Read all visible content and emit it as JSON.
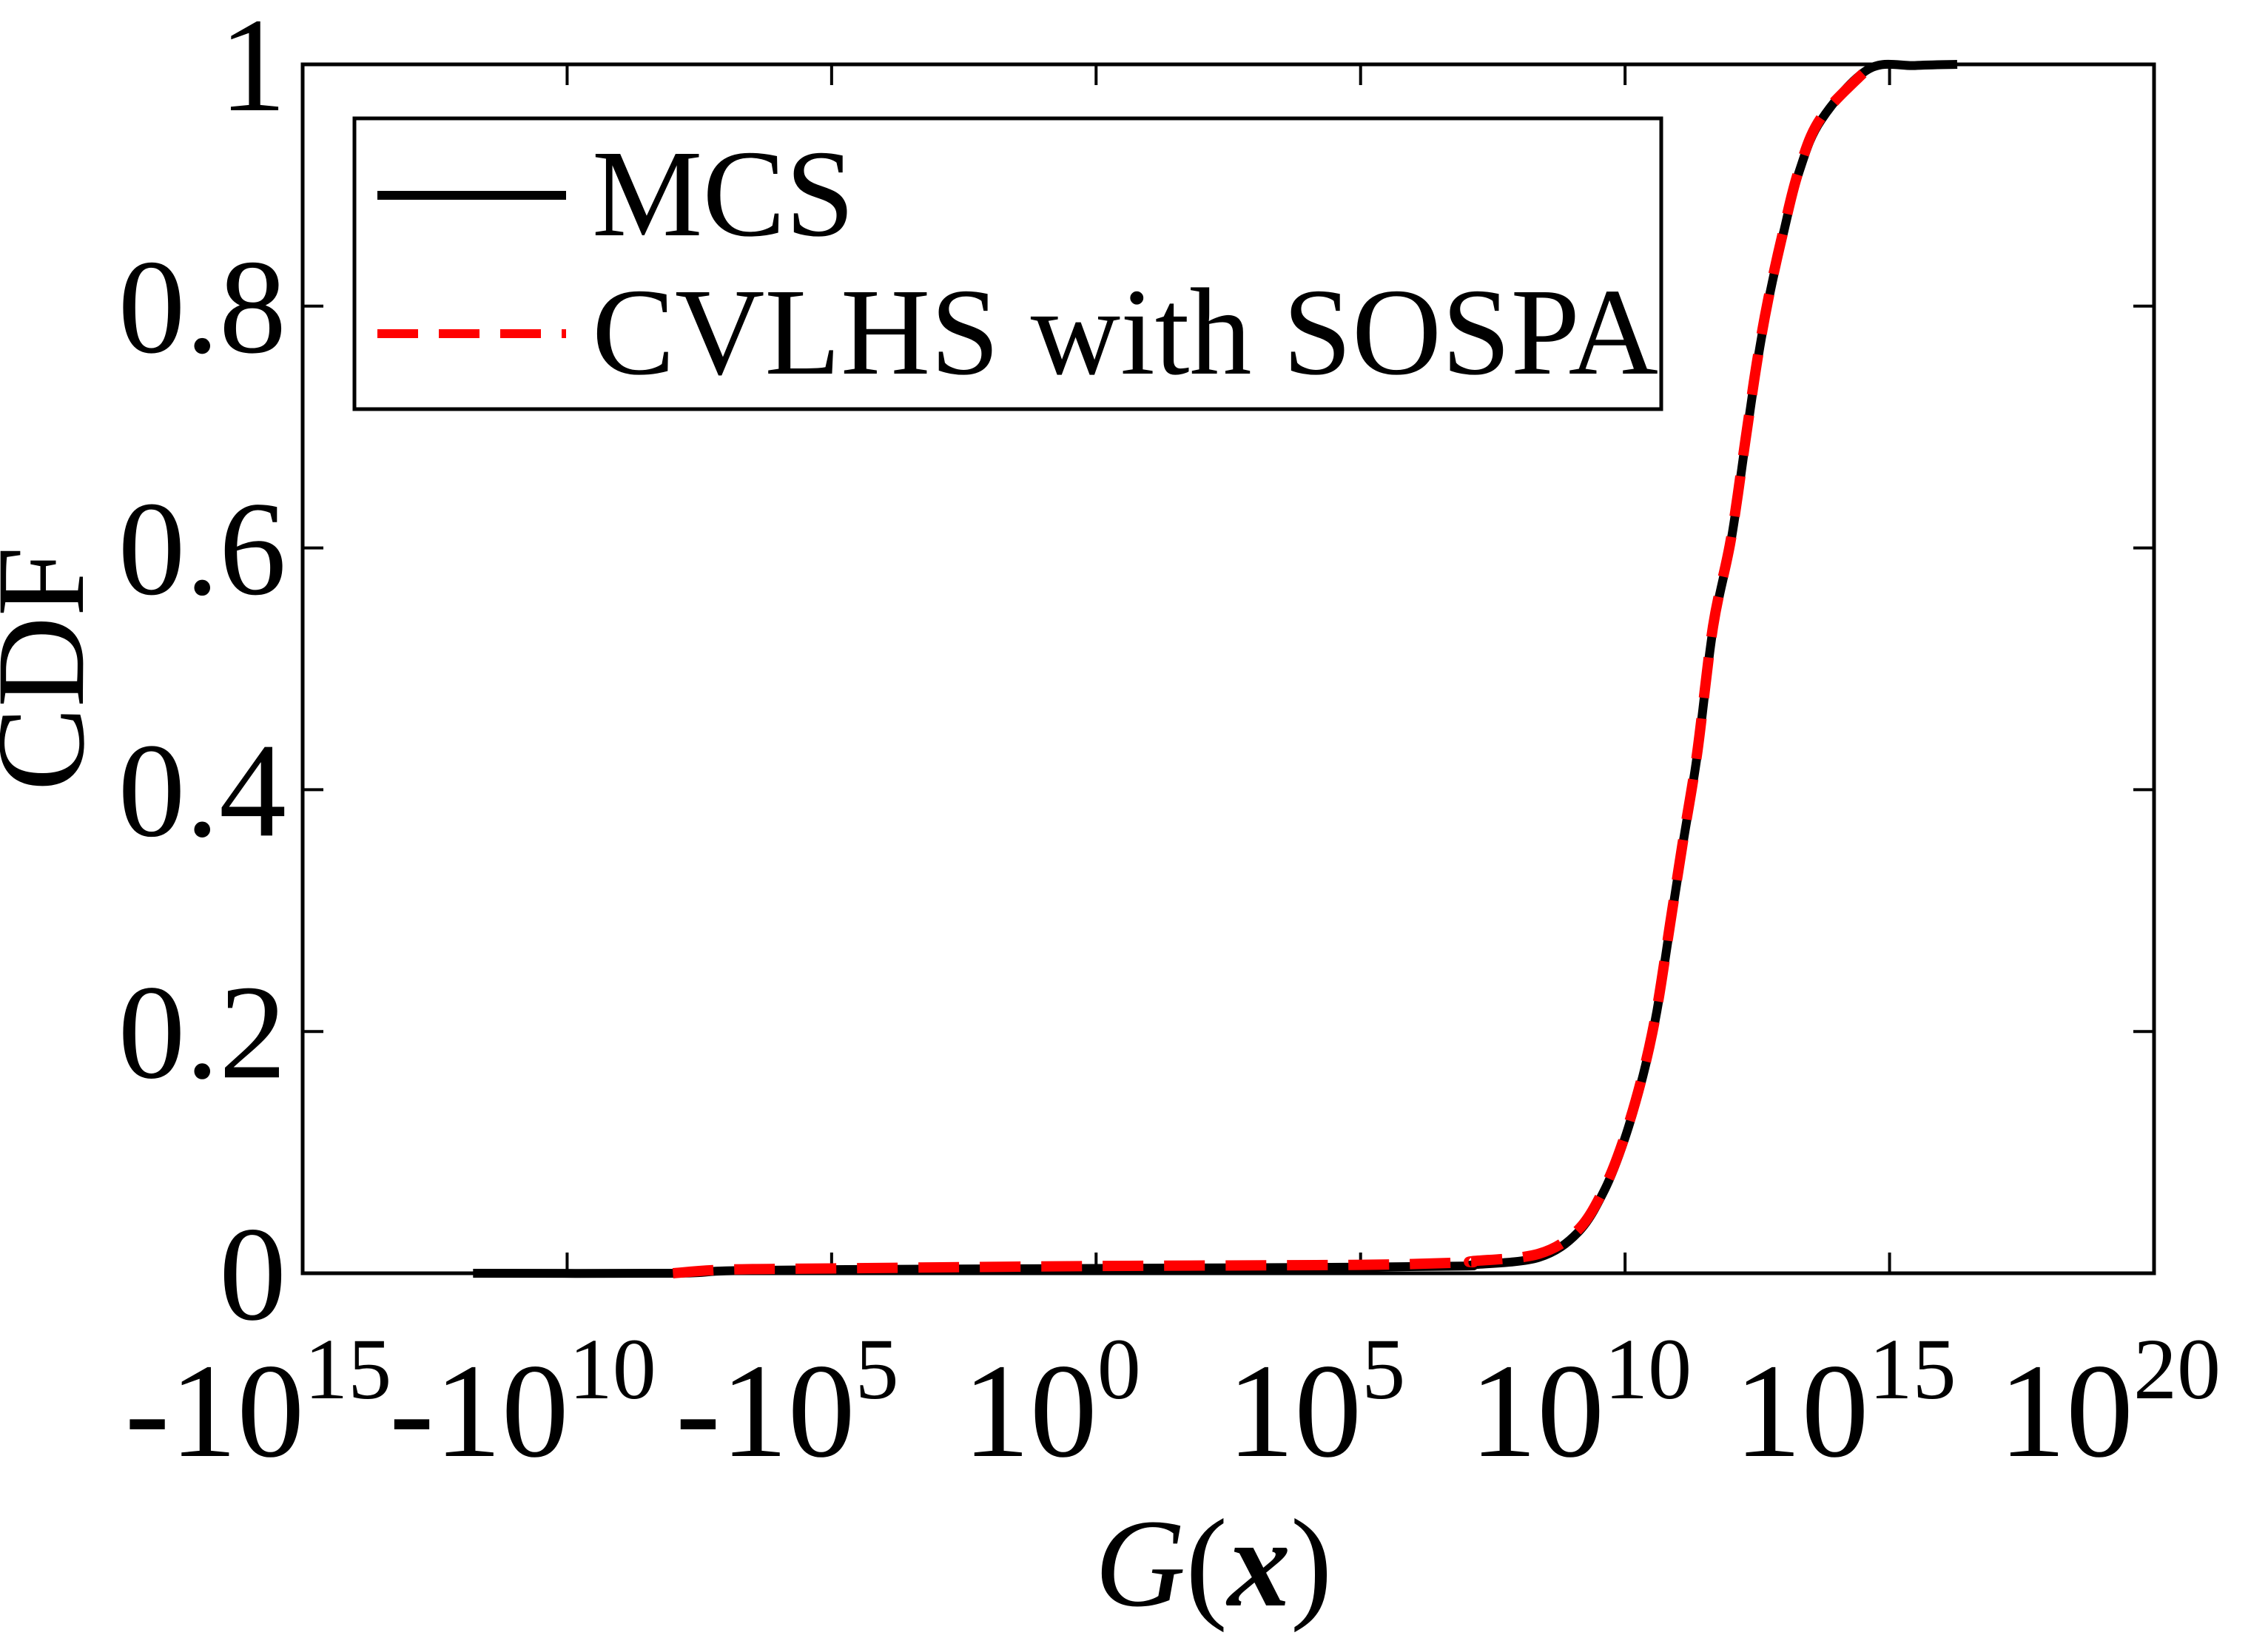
{
  "chart_data": {
    "type": "line",
    "title": "",
    "xlabel": "G(x)",
    "xlabel_parts": {
      "func": "G",
      "open": "(",
      "var": "x",
      "close": ")"
    },
    "ylabel": "CDF",
    "x_scale": "signed-log (5 decades per tick, negative side mirrored)",
    "xlim": [
      -1000000000000000.0,
      1e+20
    ],
    "ylim": [
      0,
      1
    ],
    "grid": false,
    "legend_position": "top-left",
    "x_ticks": [
      {
        "value": -1000000000000000.0,
        "sign": "-",
        "base": "10",
        "exp": "15"
      },
      {
        "value": -10000000000.0,
        "sign": "-",
        "base": "10",
        "exp": "10"
      },
      {
        "value": -100000.0,
        "sign": "-",
        "base": "10",
        "exp": "5"
      },
      {
        "value": 1,
        "sign": "",
        "base": "10",
        "exp": "0"
      },
      {
        "value": 100000.0,
        "sign": "",
        "base": "10",
        "exp": "5"
      },
      {
        "value": 10000000000.0,
        "sign": "",
        "base": "10",
        "exp": "10"
      },
      {
        "value": 1000000000000000.0,
        "sign": "",
        "base": "10",
        "exp": "15"
      },
      {
        "value": 1e+20,
        "sign": "",
        "base": "10",
        "exp": "20"
      }
    ],
    "y_ticks": [
      {
        "value": 0,
        "label": "0"
      },
      {
        "value": 0.2,
        "label": "0.2"
      },
      {
        "value": 0.4,
        "label": "0.4"
      },
      {
        "value": 0.6,
        "label": "0.6"
      },
      {
        "value": 0.8,
        "label": "0.8"
      },
      {
        "value": 1,
        "label": "1"
      }
    ],
    "series": [
      {
        "name": "MCS",
        "color": "#000000",
        "style": "solid",
        "points": [
          {
            "x": -600000000000.0,
            "y": 0.0
          },
          {
            "x": -100000000.0,
            "y": 0.0
          },
          {
            "x": -10000000.0,
            "y": 0.002
          },
          {
            "x": -100000.0,
            "y": 0.003
          },
          {
            "x": 1,
            "y": 0.004
          },
          {
            "x": 100000.0,
            "y": 0.005
          },
          {
            "x": 10000000.0,
            "y": 0.006
          },
          {
            "x": 13000000.0,
            "y": 0.007
          },
          {
            "x": 230000000.0,
            "y": 0.013
          },
          {
            "x": 1300000000.0,
            "y": 0.034
          },
          {
            "x": 4100000000.0,
            "y": 0.069
          },
          {
            "x": 9800000000.0,
            "y": 0.111
          },
          {
            "x": 22000000000.0,
            "y": 0.164
          },
          {
            "x": 40000000000.0,
            "y": 0.217
          },
          {
            "x": 71000000000.0,
            "y": 0.287
          },
          {
            "x": 126000000000.0,
            "y": 0.357
          },
          {
            "x": 230000000000.0,
            "y": 0.428
          },
          {
            "x": 460000000000.0,
            "y": 0.533
          },
          {
            "x": 1000000000000.0,
            "y": 0.605
          },
          {
            "x": 1900000000000.0,
            "y": 0.688
          },
          {
            "x": 3100000000000.0,
            "y": 0.751
          },
          {
            "x": 5100000000000.0,
            "y": 0.804
          },
          {
            "x": 9800000000000.0,
            "y": 0.86
          },
          {
            "x": 19500000000000.0,
            "y": 0.911
          },
          {
            "x": 51000000000000.0,
            "y": 0.954
          },
          {
            "x": 400000000000000.0,
            "y": 0.996
          },
          {
            "x": 3000000000000000.0,
            "y": 0.999
          },
          {
            "x": 1.9e+16,
            "y": 1.0
          }
        ]
      },
      {
        "name": "CVLHS with SOSPA",
        "color": "#ff0000",
        "style": "dashed",
        "points": [
          {
            "x": -100000000.0,
            "y": 0.0
          },
          {
            "x": -10000000.0,
            "y": 0.003
          },
          {
            "x": -100000.0,
            "y": 0.004
          },
          {
            "x": 1,
            "y": 0.006
          },
          {
            "x": 100000.0,
            "y": 0.007
          },
          {
            "x": 10000000.0,
            "y": 0.009
          },
          {
            "x": 13000000.0,
            "y": 0.01
          },
          {
            "x": 230000000.0,
            "y": 0.016
          },
          {
            "x": 1300000000.0,
            "y": 0.036
          },
          {
            "x": 4100000000.0,
            "y": 0.071
          },
          {
            "x": 9800000000.0,
            "y": 0.113
          },
          {
            "x": 22000000000.0,
            "y": 0.166
          },
          {
            "x": 40000000000.0,
            "y": 0.219
          },
          {
            "x": 71000000000.0,
            "y": 0.289
          },
          {
            "x": 126000000000.0,
            "y": 0.359
          },
          {
            "x": 230000000000.0,
            "y": 0.43
          },
          {
            "x": 460000000000.0,
            "y": 0.535
          },
          {
            "x": 1000000000000.0,
            "y": 0.607
          },
          {
            "x": 1900000000000.0,
            "y": 0.69
          },
          {
            "x": 3100000000000.0,
            "y": 0.753
          },
          {
            "x": 5100000000000.0,
            "y": 0.806
          },
          {
            "x": 9800000000000.0,
            "y": 0.862
          },
          {
            "x": 19500000000000.0,
            "y": 0.913
          },
          {
            "x": 51000000000000.0,
            "y": 0.956
          },
          {
            "x": 400000000000000.0,
            "y": 0.997
          }
        ]
      }
    ]
  },
  "legend": {
    "items": [
      {
        "label": "MCS",
        "color": "#000000",
        "style": "solid"
      },
      {
        "label": "CVLHS with SOSPA",
        "color": "#ff0000",
        "style": "dashed"
      }
    ]
  }
}
